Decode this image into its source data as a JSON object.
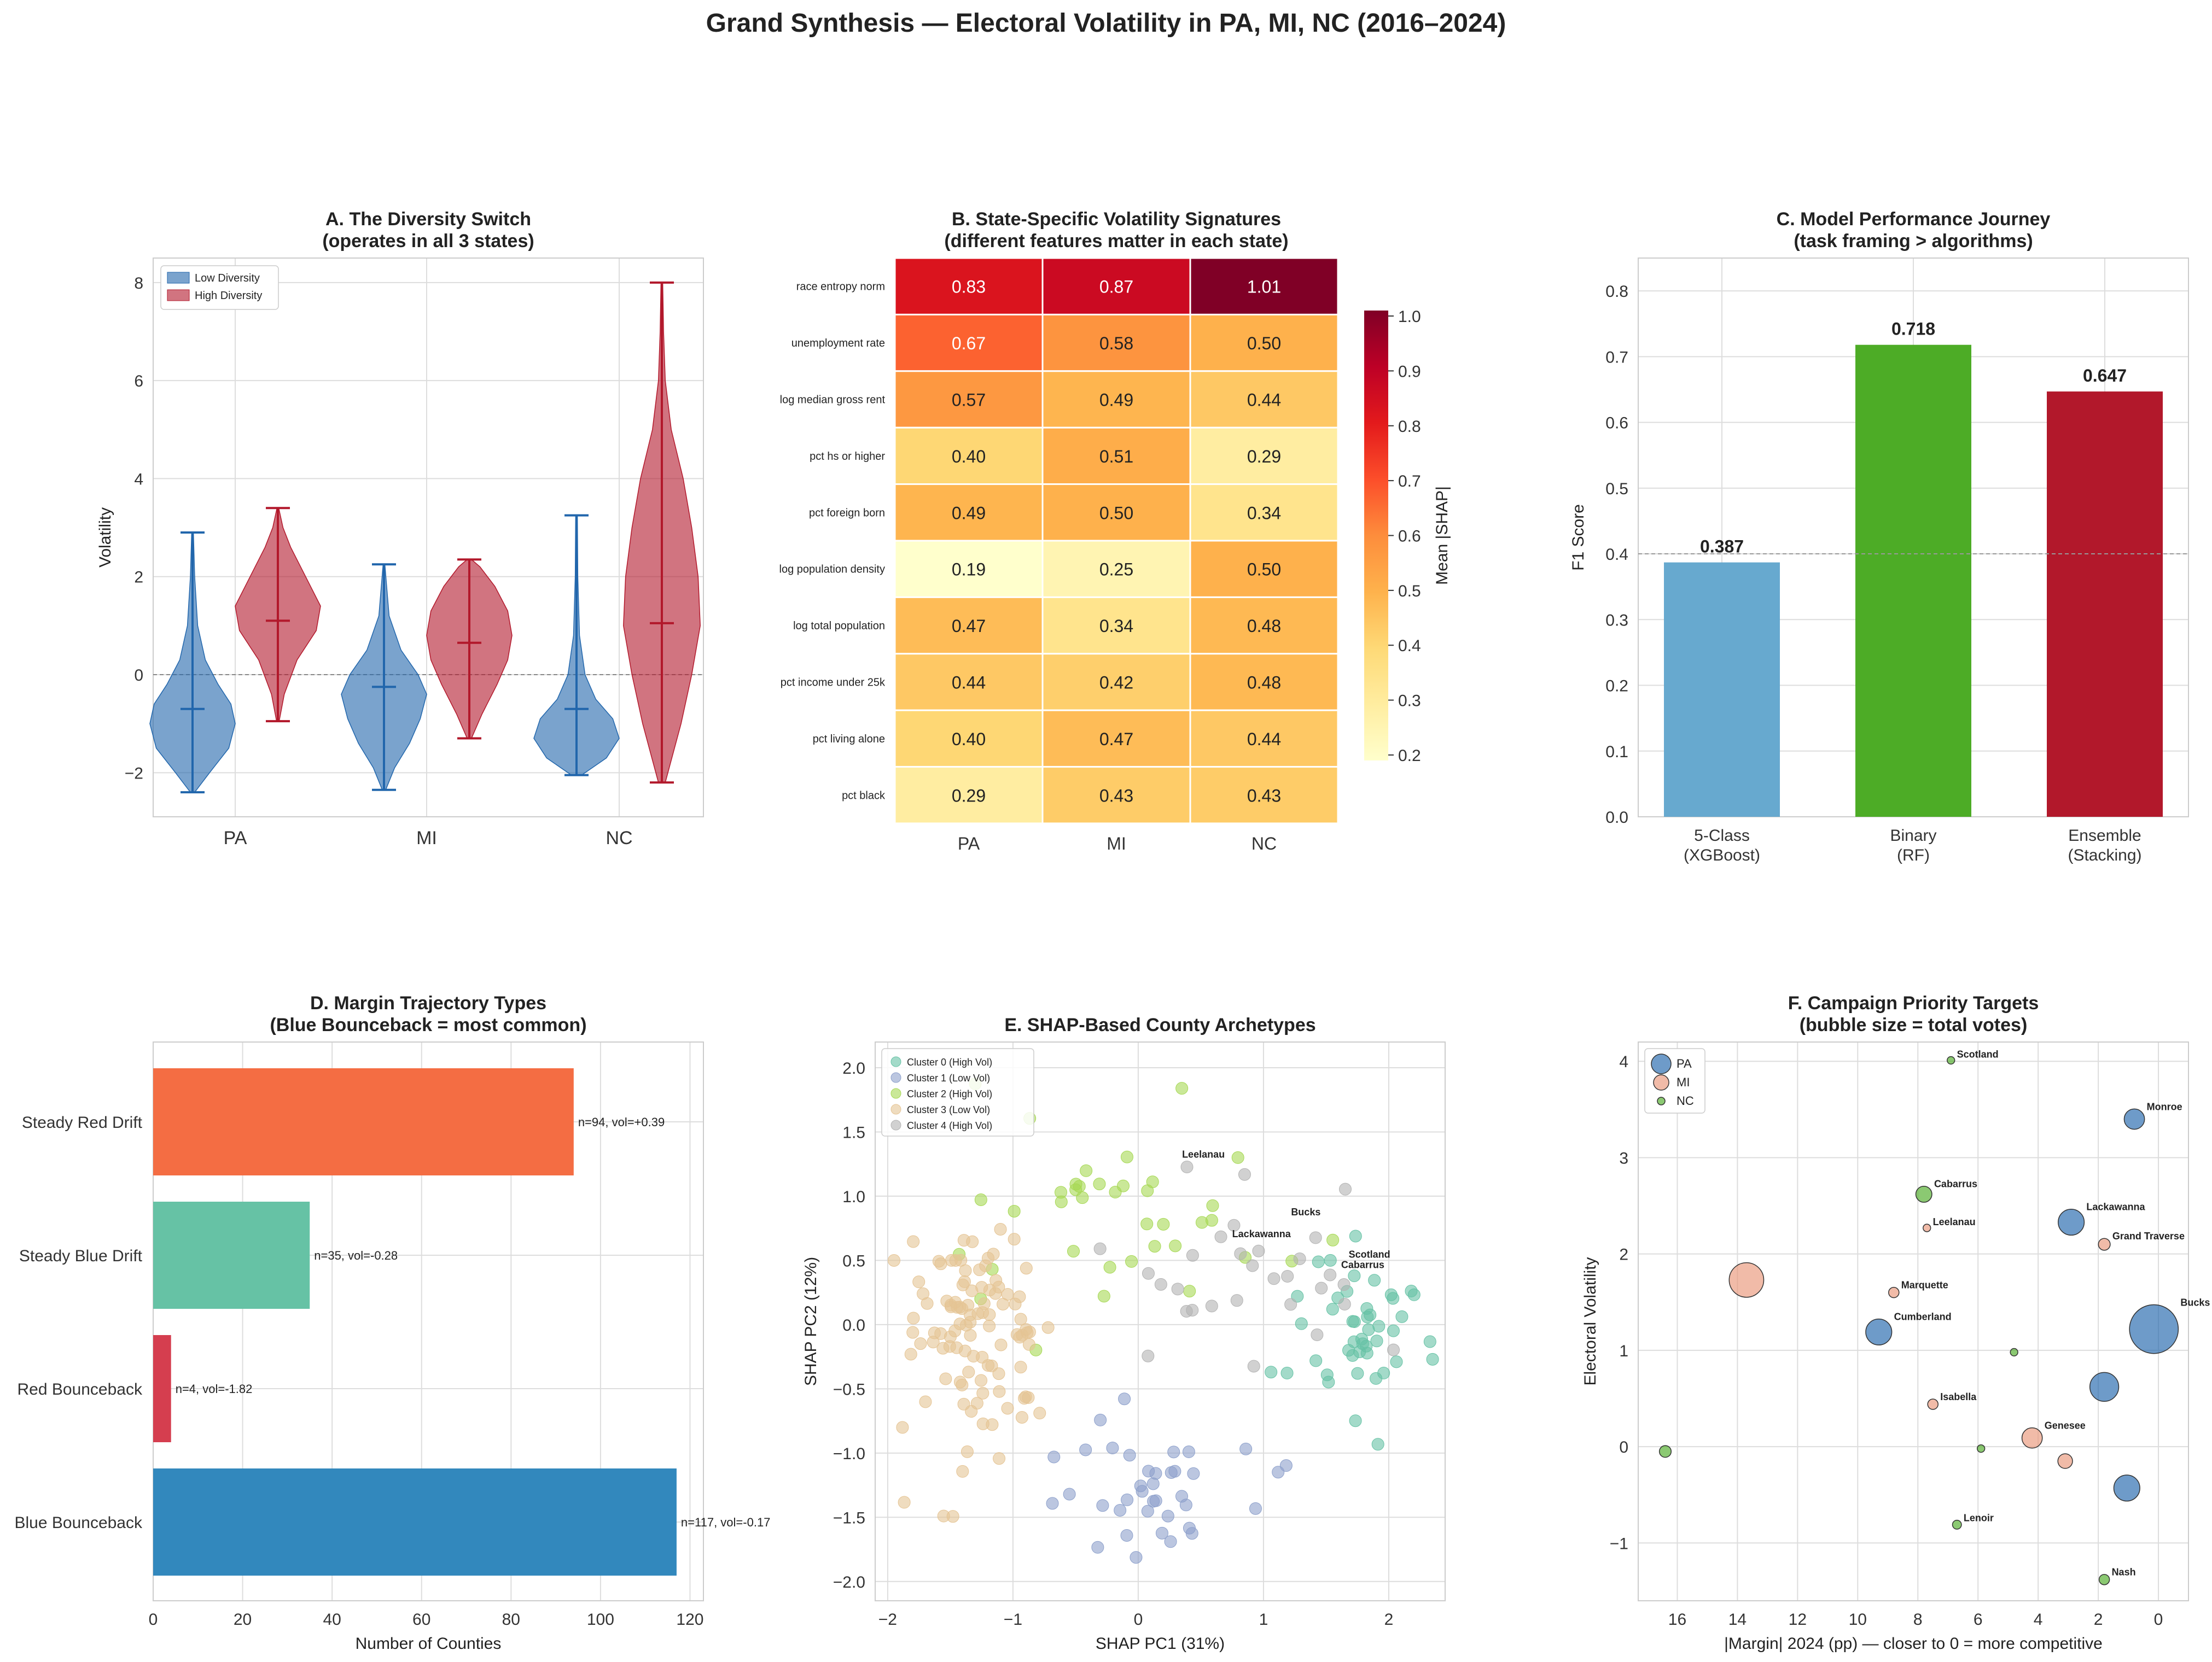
{
  "figure": {
    "title": "Grand Synthesis — Electoral Volatility in PA, MI, NC (2016–2024)"
  },
  "colors": {
    "low": "#2166ac",
    "high": "#b2182b",
    "pa": "#2166ac",
    "mi": "#e9967a",
    "nc": "#4dac26"
  },
  "chart_data": [
    {
      "id": "A",
      "type": "violin",
      "title": "A. The Diversity Switch",
      "subtitle": "(operates in all 3 states)",
      "ylabel": "Volatility",
      "xlabel": "",
      "categories": [
        "PA",
        "MI",
        "NC"
      ],
      "ylim": [
        -2.9,
        8.5
      ],
      "yticks": [
        -2,
        0,
        2,
        4,
        6,
        8
      ],
      "legend": {
        "position": "top-left",
        "entries": [
          "Low Diversity",
          "High Diversity"
        ]
      },
      "series": [
        {
          "name": "Low Diversity",
          "color": "#2166ac",
          "groups": [
            {
              "category": "PA",
              "min": -2.4,
              "median": -0.7,
              "max": 2.9,
              "profile": [
                [
                  -2.4,
                  0.05
                ],
                [
                  -2.0,
                  0.4
                ],
                [
                  -1.5,
                  0.85
                ],
                [
                  -1.0,
                  1.0
                ],
                [
                  -0.6,
                  0.9
                ],
                [
                  -0.2,
                  0.6
                ],
                [
                  0.3,
                  0.3
                ],
                [
                  1.0,
                  0.12
                ],
                [
                  2.0,
                  0.05
                ],
                [
                  2.9,
                  0.02
                ]
              ]
            },
            {
              "category": "MI",
              "min": -2.35,
              "median": -0.25,
              "max": 2.25,
              "profile": [
                [
                  -2.35,
                  0.04
                ],
                [
                  -1.9,
                  0.25
                ],
                [
                  -1.4,
                  0.6
                ],
                [
                  -0.9,
                  0.85
                ],
                [
                  -0.4,
                  1.0
                ],
                [
                  0.0,
                  0.8
                ],
                [
                  0.5,
                  0.4
                ],
                [
                  1.2,
                  0.12
                ],
                [
                  2.25,
                  0.02
                ]
              ]
            },
            {
              "category": "NC",
              "min": -2.05,
              "median": -0.7,
              "max": 3.25,
              "profile": [
                [
                  -2.05,
                  0.12
                ],
                [
                  -1.7,
                  0.7
                ],
                [
                  -1.3,
                  1.0
                ],
                [
                  -0.9,
                  0.85
                ],
                [
                  -0.5,
                  0.45
                ],
                [
                  0.0,
                  0.2
                ],
                [
                  0.8,
                  0.07
                ],
                [
                  2.0,
                  0.03
                ],
                [
                  3.25,
                  0.02
                ]
              ]
            }
          ]
        },
        {
          "name": "High Diversity",
          "color": "#b2182b",
          "groups": [
            {
              "category": "PA",
              "min": -0.95,
              "median": 1.1,
              "max": 3.4,
              "profile": [
                [
                  -0.95,
                  0.03
                ],
                [
                  -0.4,
                  0.15
                ],
                [
                  0.3,
                  0.45
                ],
                [
                  0.9,
                  0.9
                ],
                [
                  1.4,
                  1.0
                ],
                [
                  2.0,
                  0.65
                ],
                [
                  2.6,
                  0.3
                ],
                [
                  3.0,
                  0.12
                ],
                [
                  3.4,
                  0.02
                ]
              ]
            },
            {
              "category": "MI",
              "min": -1.3,
              "median": 0.65,
              "max": 2.35,
              "profile": [
                [
                  -1.3,
                  0.05
                ],
                [
                  -0.8,
                  0.3
                ],
                [
                  -0.2,
                  0.65
                ],
                [
                  0.3,
                  0.9
                ],
                [
                  0.8,
                  1.0
                ],
                [
                  1.3,
                  0.9
                ],
                [
                  1.8,
                  0.6
                ],
                [
                  2.2,
                  0.25
                ],
                [
                  2.35,
                  0.05
                ]
              ]
            },
            {
              "category": "NC",
              "min": -2.2,
              "median": 1.05,
              "max": 8.0,
              "profile": [
                [
                  -2.2,
                  0.08
                ],
                [
                  -1.0,
                  0.45
                ],
                [
                  0.0,
                  0.7
                ],
                [
                  1.0,
                  0.9
                ],
                [
                  2.0,
                  0.85
                ],
                [
                  3.0,
                  0.7
                ],
                [
                  4.0,
                  0.5
                ],
                [
                  5.0,
                  0.22
                ],
                [
                  6.0,
                  0.08
                ],
                [
                  7.0,
                  0.04
                ],
                [
                  8.0,
                  0.02
                ]
              ]
            }
          ]
        }
      ]
    },
    {
      "id": "B",
      "type": "heatmap",
      "title": "B. State-Specific Volatility Signatures",
      "subtitle": "(different features matter in each state)",
      "columns": [
        "PA",
        "MI",
        "NC"
      ],
      "rows": [
        "race entropy norm",
        "unemployment rate",
        "log median gross rent",
        "pct hs or higher",
        "pct foreign born",
        "log population density",
        "log total population",
        "pct income under 25k",
        "pct living alone",
        "pct black"
      ],
      "values": [
        [
          0.83,
          0.87,
          1.01
        ],
        [
          0.67,
          0.58,
          0.5
        ],
        [
          0.57,
          0.49,
          0.44
        ],
        [
          0.4,
          0.51,
          0.29
        ],
        [
          0.49,
          0.5,
          0.34
        ],
        [
          0.19,
          0.25,
          0.5
        ],
        [
          0.47,
          0.34,
          0.48
        ],
        [
          0.44,
          0.42,
          0.48
        ],
        [
          0.4,
          0.47,
          0.44
        ],
        [
          0.29,
          0.43,
          0.43
        ]
      ],
      "colorbar": {
        "label": "Mean |SHAP|",
        "range": [
          0.19,
          1.01
        ],
        "ticks": [
          0.2,
          0.3,
          0.4,
          0.5,
          0.6,
          0.7,
          0.8,
          0.9,
          1.0
        ],
        "colormap": "YlOrRd"
      }
    },
    {
      "id": "C",
      "type": "bar",
      "title": "C. Model Performance Journey",
      "subtitle": "(task framing > algorithms)",
      "ylabel": "F1 Score",
      "xlabel": "",
      "categories": [
        "5-Class (XGBoost)",
        "Binary (RF)",
        "Ensemble (Stacking)"
      ],
      "category_lines": [
        [
          "5-Class",
          "(XGBoost)"
        ],
        [
          "Binary",
          "(RF)"
        ],
        [
          "Ensemble",
          "(Stacking)"
        ]
      ],
      "values": [
        0.387,
        0.718,
        0.647
      ],
      "value_labels": [
        "0.387",
        "0.718",
        "0.647"
      ],
      "colors": [
        "#67a9cf",
        "#4dac26",
        "#b2182b"
      ],
      "reference_line": 0.4,
      "ylim": [
        0,
        0.85
      ],
      "yticks": [
        0.0,
        0.1,
        0.2,
        0.3,
        0.4,
        0.5,
        0.6,
        0.7,
        0.8
      ]
    },
    {
      "id": "D",
      "type": "bar-horizontal",
      "title": "D. Margin Trajectory Types",
      "subtitle": "(Blue Bounceback = most common)",
      "xlabel": "Number of Counties",
      "ylabel": "",
      "categories": [
        "Steady Red Drift",
        "Steady Blue Drift",
        "Red Bounceback",
        "Blue Bounceback"
      ],
      "values": [
        94,
        35,
        4,
        117
      ],
      "labels": [
        "n=94, vol=+0.39",
        "n=35, vol=-0.28",
        "n=4, vol=-1.82",
        "n=117, vol=-0.17"
      ],
      "colors": [
        "#f46d43",
        "#66c2a5",
        "#d53e4f",
        "#3288bd"
      ],
      "xlim": [
        0,
        123
      ],
      "xticks": [
        0,
        20,
        40,
        60,
        80,
        100,
        120
      ]
    },
    {
      "id": "E",
      "type": "scatter",
      "title": "E. SHAP-Based County Archetypes",
      "xlabel": "SHAP PC1 (31%)",
      "ylabel": "SHAP PC2 (12%)",
      "xlim": [
        -2.1,
        2.45
      ],
      "ylim": [
        -2.15,
        2.2
      ],
      "xticks": [
        -2,
        -1,
        0,
        1,
        2
      ],
      "yticks": [
        -2.0,
        -1.5,
        -1.0,
        -0.5,
        0.0,
        0.5,
        1.0,
        1.5,
        2.0
      ],
      "legend": {
        "position": "top-left"
      },
      "clusters": [
        {
          "name": "Cluster 0 (High Vol)",
          "color": "#66c2a5",
          "center": [
            1.8,
            -0.05
          ],
          "spread": [
            0.28,
            0.35
          ],
          "n": 45
        },
        {
          "name": "Cluster 1 (Low Vol)",
          "color": "#8da0cb",
          "center": [
            0.05,
            -1.25
          ],
          "spread": [
            0.45,
            0.3
          ],
          "n": 38
        },
        {
          "name": "Cluster 2 (High Vol)",
          "color": "#a6d854",
          "center": [
            -0.1,
            1.05
          ],
          "spread": [
            0.6,
            0.45
          ],
          "n": 38
        },
        {
          "name": "Cluster 3 (Low Vol)",
          "color": "#e5c494",
          "center": [
            -1.3,
            -0.1
          ],
          "spread": [
            0.3,
            0.45
          ],
          "n": 105
        },
        {
          "name": "Cluster 4 (High Vol)",
          "color": "#b3b3b3",
          "center": [
            1.0,
            0.4
          ],
          "spread": [
            0.55,
            0.4
          ],
          "n": 30
        }
      ],
      "annotations": [
        {
          "text": "Leelanau",
          "x": 0.35,
          "y": 1.3
        },
        {
          "text": "Bucks",
          "x": 1.22,
          "y": 0.85
        },
        {
          "text": "Lackawanna",
          "x": 0.75,
          "y": 0.68
        },
        {
          "text": "Scotland",
          "x": 1.68,
          "y": 0.52
        },
        {
          "text": "Cabarrus",
          "x": 1.62,
          "y": 0.44
        }
      ]
    },
    {
      "id": "F",
      "type": "scatter",
      "title": "F. Campaign Priority Targets",
      "subtitle": "(bubble size = total votes)",
      "xlabel": "|Margin| 2024 (pp) — closer to 0 = more competitive",
      "ylabel": "Electoral Volatility",
      "x_inverted": true,
      "xlim": [
        17.3,
        -1.0
      ],
      "ylim": [
        -1.6,
        4.2
      ],
      "xticks": [
        16,
        14,
        12,
        10,
        8,
        6,
        4,
        2,
        0
      ],
      "yticks": [
        -1,
        0,
        1,
        2,
        3,
        4
      ],
      "legend": {
        "position": "top-left",
        "entries": [
          "PA",
          "MI",
          "NC"
        ]
      },
      "points": [
        {
          "x": 0.15,
          "y": 1.22,
          "state": "PA",
          "size": 16,
          "label": "Bucks"
        },
        {
          "x": 0.8,
          "y": 3.4,
          "state": "PA",
          "size": 6,
          "label": "Monroe"
        },
        {
          "x": 2.9,
          "y": 2.33,
          "state": "PA",
          "size": 8,
          "label": "Lackawanna"
        },
        {
          "x": 9.3,
          "y": 1.19,
          "state": "PA",
          "size": 8,
          "label": "Cumberland"
        },
        {
          "x": 1.8,
          "y": 0.62,
          "state": "PA",
          "size": 9,
          "label": ""
        },
        {
          "x": 1.05,
          "y": -0.43,
          "state": "PA",
          "size": 8,
          "label": ""
        },
        {
          "x": 13.7,
          "y": 1.73,
          "state": "MI",
          "size": 11,
          "label": ""
        },
        {
          "x": 1.8,
          "y": 2.1,
          "state": "MI",
          "size": 3,
          "label": "Grand Traverse"
        },
        {
          "x": 8.8,
          "y": 1.6,
          "state": "MI",
          "size": 2.5,
          "label": "Marquette"
        },
        {
          "x": 7.5,
          "y": 0.44,
          "state": "MI",
          "size": 2.5,
          "label": "Isabella"
        },
        {
          "x": 4.2,
          "y": 0.09,
          "state": "MI",
          "size": 6,
          "label": "Genesee"
        },
        {
          "x": 3.1,
          "y": -0.15,
          "state": "MI",
          "size": 4,
          "label": ""
        },
        {
          "x": 7.8,
          "y": 2.62,
          "state": "NC",
          "size": 4.5,
          "label": "Cabarrus"
        },
        {
          "x": 6.9,
          "y": 4.01,
          "state": "NC",
          "size": 1.5,
          "label": "Scotland"
        },
        {
          "x": 7.7,
          "y": 2.27,
          "state": "MI",
          "size": 1.5,
          "label": "Leelanau"
        },
        {
          "x": 6.7,
          "y": -0.81,
          "state": "NC",
          "size": 2,
          "label": "Lenoir"
        },
        {
          "x": 1.8,
          "y": -1.38,
          "state": "NC",
          "size": 2.5,
          "label": "Nash"
        },
        {
          "x": 16.4,
          "y": -0.05,
          "state": "NC",
          "size": 3,
          "label": ""
        },
        {
          "x": 4.8,
          "y": 0.98,
          "state": "NC",
          "size": 1.5,
          "label": ""
        },
        {
          "x": 5.9,
          "y": -0.02,
          "state": "NC",
          "size": 1.5,
          "label": ""
        }
      ]
    }
  ]
}
